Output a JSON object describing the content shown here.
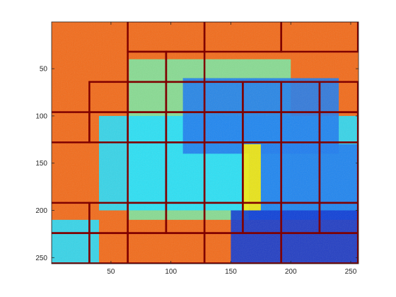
{
  "figure": {
    "background_color": "#ffffff",
    "axes_color": "#262626",
    "grid_line_color": "#7f0000"
  },
  "chart_data": {
    "type": "heatmap",
    "title": "",
    "xlabel": "",
    "ylabel": "",
    "x_range": [
      1,
      256
    ],
    "y_range": [
      1,
      256
    ],
    "y_direction": "reversed",
    "x_ticks": [
      "50",
      "100",
      "150",
      "200",
      "250"
    ],
    "y_ticks": [
      "50",
      "100",
      "150",
      "200",
      "250"
    ],
    "x_tick_values": [
      50,
      100,
      150,
      200,
      250
    ],
    "y_tick_values": [
      50,
      100,
      150,
      200,
      250
    ],
    "colormap": "jet",
    "colors": {
      "background_orange": "#f26b1a",
      "light_green": "#7ce8a0",
      "cyan": "#22e0ff",
      "blue": "#1e7cf0",
      "dark_blue": "#0b3ad6",
      "yellow": "#ffee00"
    },
    "regions": [
      {
        "value": "light_green",
        "x": [
          65,
          200
        ],
        "y": [
          40,
          210
        ]
      },
      {
        "value": "cyan",
        "x": [
          40,
          256
        ],
        "y": [
          100,
          200
        ]
      },
      {
        "value": "blue",
        "x": [
          110,
          240
        ],
        "y": [
          60,
          140
        ]
      },
      {
        "value": "blue",
        "x": [
          165,
          256
        ],
        "y": [
          130,
          210
        ]
      },
      {
        "value": "dark_blue",
        "x": [
          150,
          256
        ],
        "y": [
          200,
          256
        ]
      },
      {
        "value": "yellow",
        "x": [
          160,
          175
        ],
        "y": [
          130,
          200
        ]
      },
      {
        "value": "cyan",
        "x": [
          0,
          40
        ],
        "y": [
          210,
          256
        ]
      }
    ],
    "quadtree_blocks": [
      [
        64,
        0,
        128,
        32
      ],
      [
        128,
        0,
        192,
        32
      ],
      [
        192,
        0,
        256,
        32
      ],
      [
        64,
        32,
        96,
        64
      ],
      [
        96,
        32,
        128,
        64
      ],
      [
        32,
        64,
        64,
        96
      ],
      [
        64,
        64,
        96,
        96
      ],
      [
        96,
        64,
        128,
        96
      ],
      [
        128,
        64,
        160,
        96
      ],
      [
        160,
        64,
        192,
        96
      ],
      [
        192,
        64,
        224,
        96
      ],
      [
        224,
        64,
        256,
        96
      ],
      [
        0,
        96,
        32,
        128
      ],
      [
        32,
        96,
        64,
        128
      ],
      [
        64,
        96,
        96,
        128
      ],
      [
        96,
        96,
        128,
        128
      ],
      [
        128,
        96,
        160,
        128
      ],
      [
        160,
        96,
        192,
        128
      ],
      [
        192,
        96,
        224,
        128
      ],
      [
        224,
        96,
        256,
        128
      ],
      [
        64,
        128,
        96,
        192
      ],
      [
        96,
        128,
        128,
        192
      ],
      [
        128,
        128,
        160,
        192
      ],
      [
        160,
        128,
        192,
        192
      ],
      [
        192,
        128,
        224,
        192
      ],
      [
        224,
        128,
        256,
        192
      ],
      [
        0,
        192,
        32,
        224
      ],
      [
        32,
        192,
        64,
        224
      ],
      [
        64,
        192,
        96,
        224
      ],
      [
        96,
        192,
        128,
        224
      ],
      [
        128,
        192,
        160,
        224
      ],
      [
        160,
        192,
        192,
        224
      ],
      [
        192,
        192,
        224,
        224
      ],
      [
        224,
        192,
        256,
        224
      ],
      [
        0,
        224,
        32,
        256
      ],
      [
        32,
        224,
        64,
        256
      ],
      [
        64,
        224,
        128,
        256
      ],
      [
        128,
        224,
        192,
        256
      ],
      [
        192,
        224,
        256,
        256
      ]
    ]
  }
}
